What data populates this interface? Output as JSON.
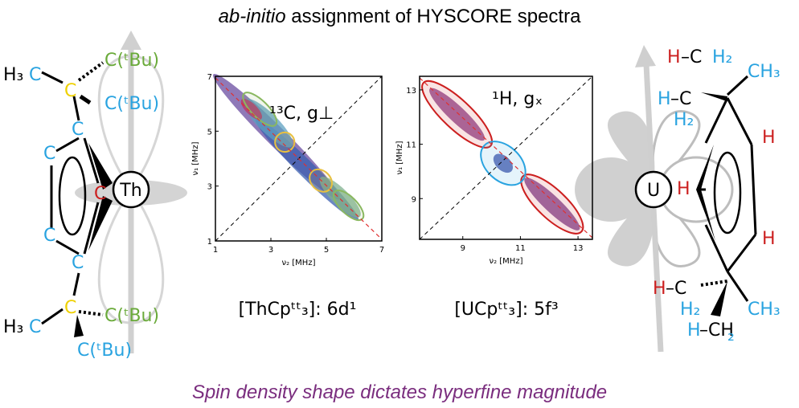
{
  "title_italic": "ab-initio",
  "title_rest": " assignment of HYSCORE spectra",
  "footer": "Spin density shape dictates hyperfine magnitude",
  "left_molecule": {
    "labels": [
      "H₃",
      "C",
      "C(ᵗBu)",
      "C",
      "C(ᵗBu)",
      "C",
      "C",
      "C",
      "Th",
      "C",
      "C",
      "C",
      "C(ᵗBu)",
      "H₃",
      "C",
      "C(ᵗBu)"
    ]
  },
  "right_molecule": {
    "labels": [
      "H",
      "–C",
      "H₂",
      "CH₃",
      "H",
      "–C",
      "H₂",
      "H",
      "U",
      "H",
      "H",
      "H",
      "–C",
      "H₂",
      "CH₃",
      "H",
      "–CH",
      "₂"
    ]
  },
  "chart_data": [
    {
      "type": "contour",
      "annotation": "¹³C, g⊥",
      "xlabel": "ν₂ [MHz]",
      "ylabel": "ν₁ [MHz]",
      "xlim": [
        1,
        7
      ],
      "ylim": [
        1,
        7
      ],
      "xticks": [
        1,
        3,
        5,
        7
      ],
      "yticks": [
        1,
        3,
        5,
        7
      ],
      "caption": "[ThCpᵗᵗ₃]: 6d¹"
    },
    {
      "type": "contour",
      "annotation": "¹H, gₓ",
      "xlabel": "ν₂ [MHz]",
      "ylabel": "ν₁ [MHz]",
      "xlim": [
        7.5,
        13.5
      ],
      "ylim": [
        7.5,
        13.5
      ],
      "xticks": [
        9,
        11,
        13
      ],
      "yticks": [
        9,
        11,
        13
      ],
      "caption": "[UCpᵗᵗ₃]: 5f³"
    }
  ]
}
